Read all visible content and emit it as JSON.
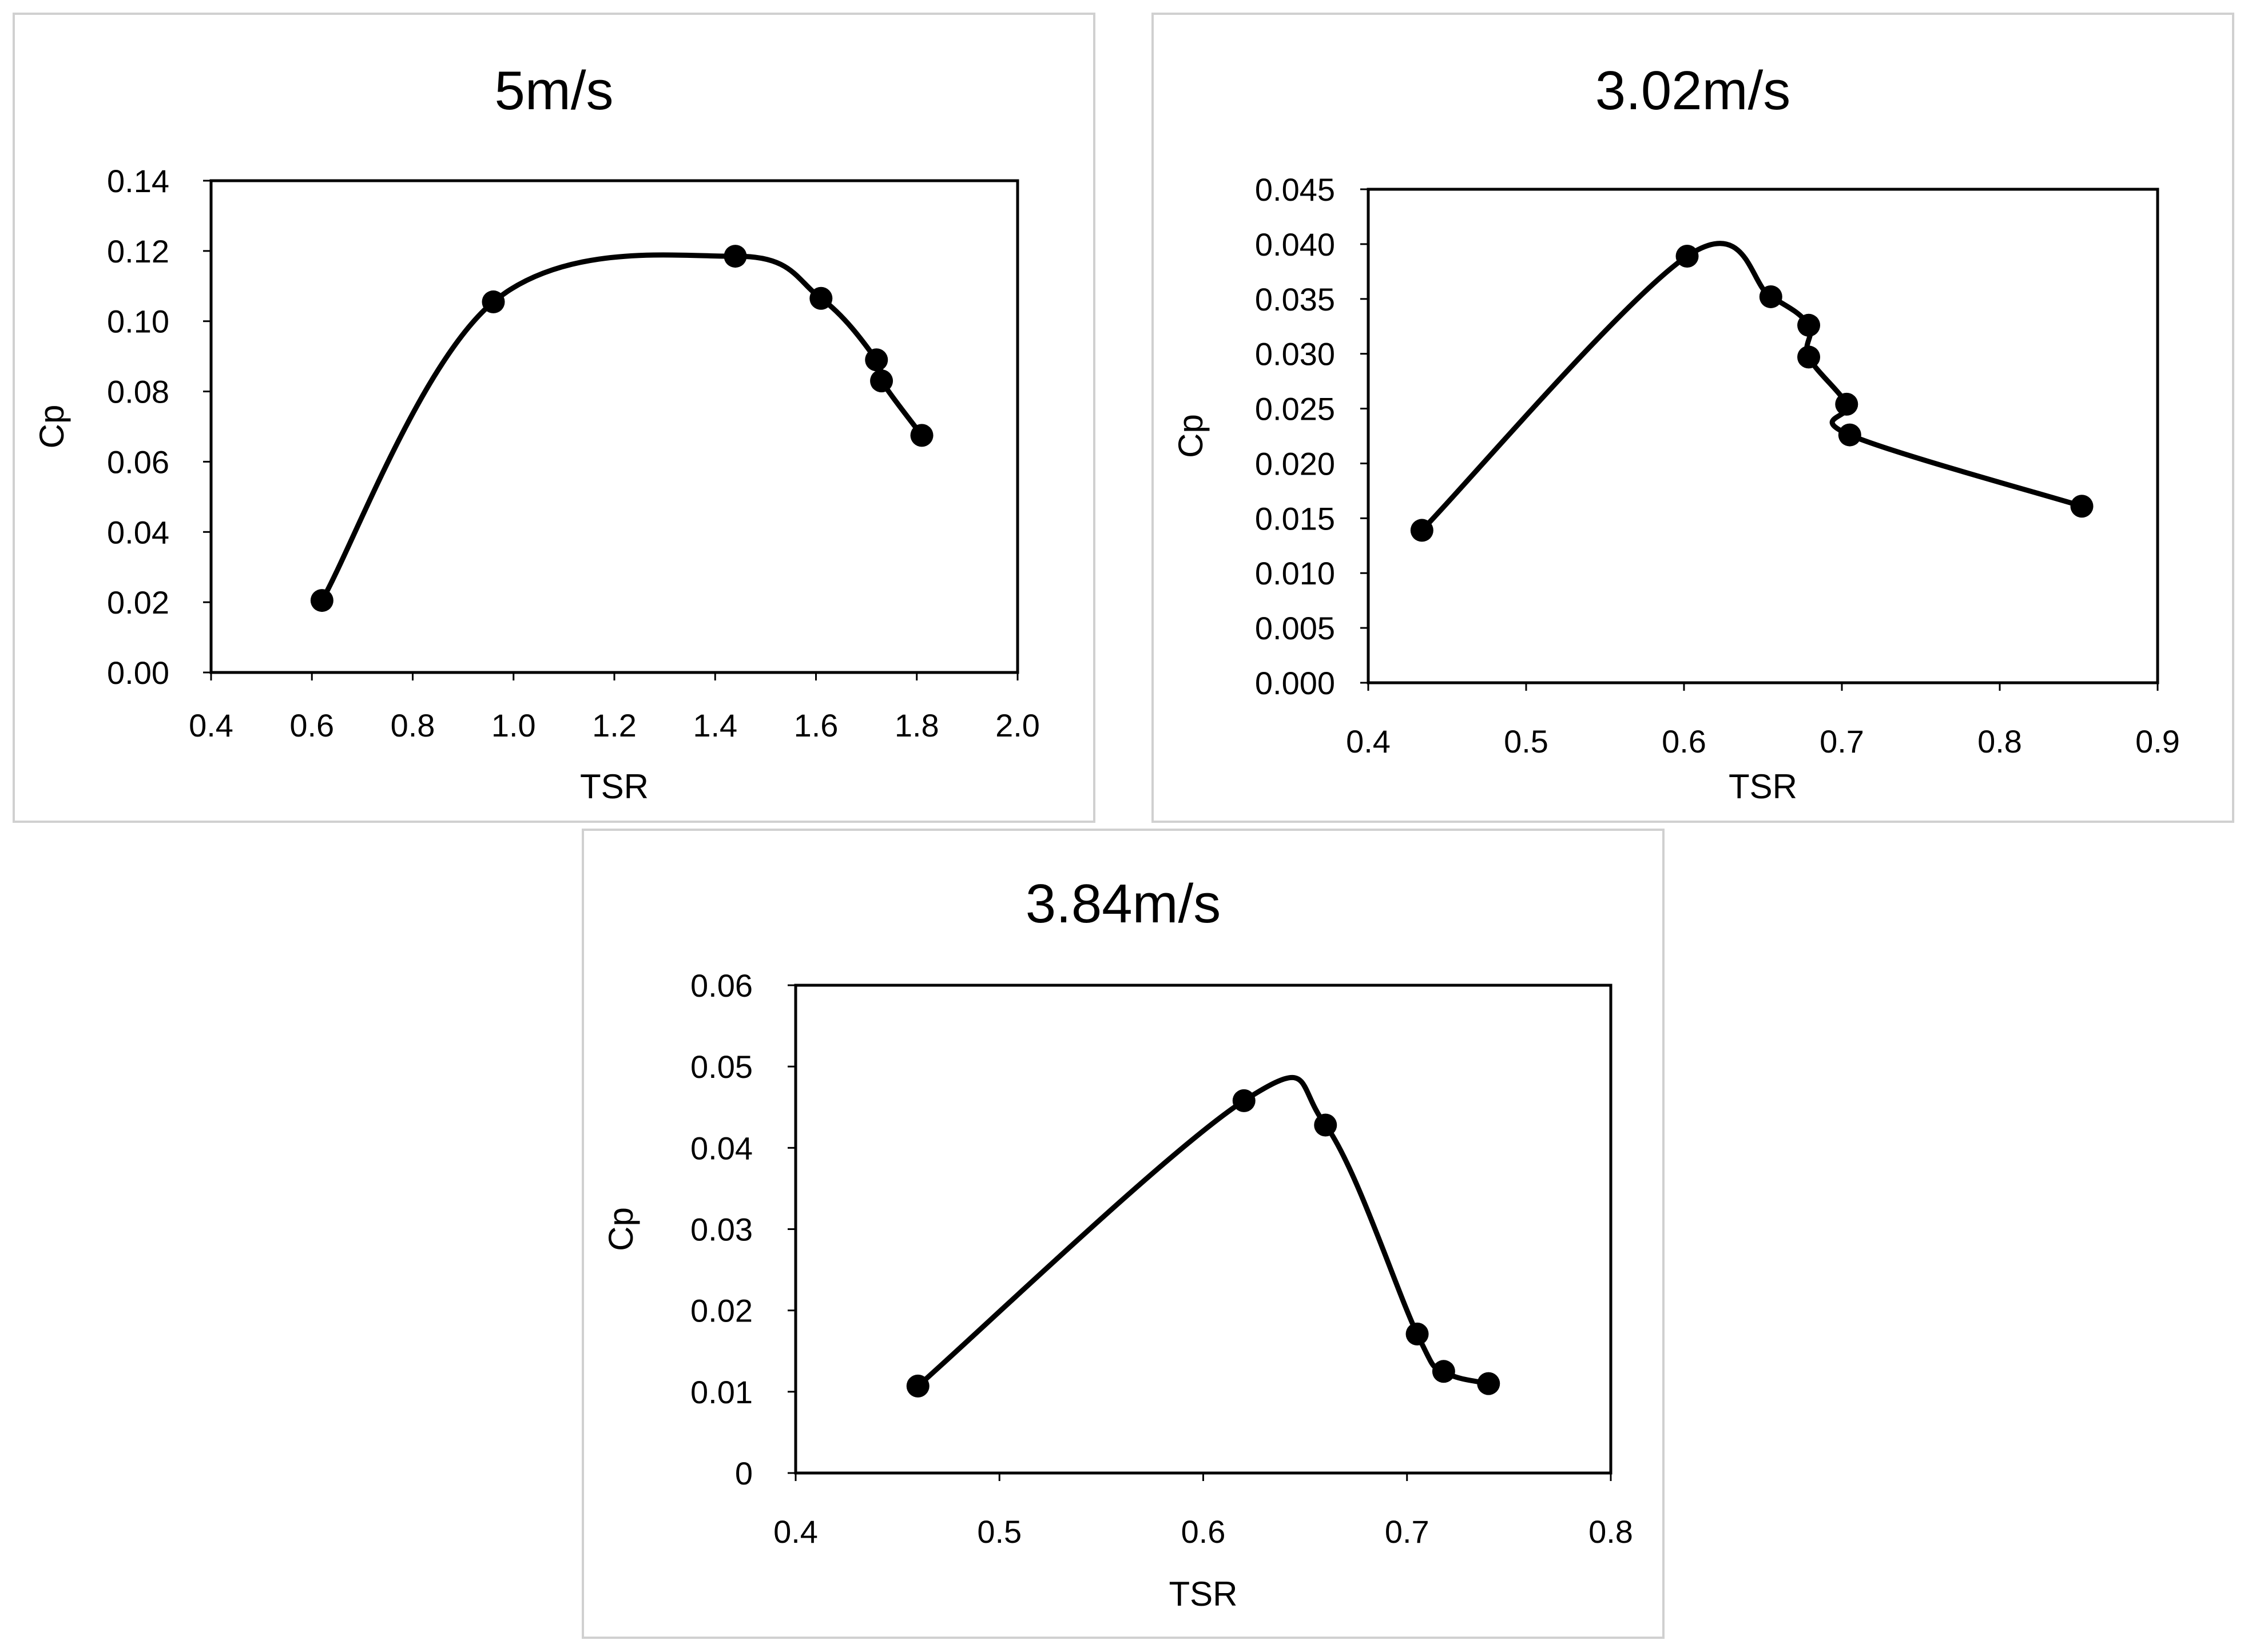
{
  "colors": {
    "line": "#000000",
    "background": "#ffffff",
    "panel_border": "#d0d0d0"
  },
  "chart_data": [
    {
      "type": "line",
      "title": "5m/s",
      "xlabel": "TSR",
      "ylabel": "Cp",
      "xlim": [
        0.4,
        2.0
      ],
      "ylim": [
        0.0,
        0.14
      ],
      "xticks": [
        0.4,
        0.6,
        0.8,
        1.0,
        1.2,
        1.4,
        1.6,
        1.8,
        2.0
      ],
      "yticks": [
        0.0,
        0.02,
        0.04,
        0.06,
        0.08,
        0.1,
        0.12,
        0.14
      ],
      "xtick_labels": [
        "0.4",
        "0.6",
        "0.8",
        "1.0",
        "1.2",
        "1.4",
        "1.6",
        "1.8",
        "2.0"
      ],
      "ytick_labels": [
        "0.00",
        "0.02",
        "0.04",
        "0.06",
        "0.08",
        "0.10",
        "0.12",
        "0.14"
      ],
      "grid": false,
      "series": [
        {
          "name": "Cp",
          "smooth": true,
          "markers": true,
          "x": [
            0.62,
            0.96,
            1.44,
            1.61,
            1.72,
            1.73,
            1.81
          ],
          "y": [
            0.0205,
            0.1055,
            0.1185,
            0.1065,
            0.089,
            0.083,
            0.0675
          ]
        }
      ]
    },
    {
      "type": "line",
      "title": "3.02m/s",
      "xlabel": "TSR",
      "ylabel": "Cp",
      "xlim": [
        0.4,
        0.9
      ],
      "ylim": [
        0.0,
        0.045
      ],
      "xticks": [
        0.4,
        0.5,
        0.6,
        0.7,
        0.8,
        0.9
      ],
      "yticks": [
        0.0,
        0.005,
        0.01,
        0.015,
        0.02,
        0.025,
        0.03,
        0.035,
        0.04,
        0.045
      ],
      "xtick_labels": [
        "0.4",
        "0.5",
        "0.6",
        "0.7",
        "0.8",
        "0.9"
      ],
      "ytick_labels": [
        "0.000",
        "0.005",
        "0.010",
        "0.015",
        "0.020",
        "0.025",
        "0.030",
        "0.035",
        "0.040",
        "0.045"
      ],
      "grid": false,
      "series": [
        {
          "name": "Cp",
          "smooth": true,
          "markers": true,
          "x": [
            0.434,
            0.602,
            0.655,
            0.679,
            0.679,
            0.703,
            0.705,
            0.852
          ],
          "y": [
            0.0139,
            0.0389,
            0.0352,
            0.0326,
            0.0297,
            0.0254,
            0.0226,
            0.0161
          ]
        }
      ]
    },
    {
      "type": "line",
      "title": "3.84m/s",
      "xlabel": "TSR",
      "ylabel": "Cp",
      "xlim": [
        0.4,
        0.8
      ],
      "ylim": [
        0,
        0.06
      ],
      "xticks": [
        0.4,
        0.5,
        0.6,
        0.7,
        0.8
      ],
      "yticks": [
        0,
        0.01,
        0.02,
        0.03,
        0.04,
        0.05,
        0.06
      ],
      "xtick_labels": [
        "0.4",
        "0.5",
        "0.6",
        "0.7",
        "0.8"
      ],
      "ytick_labels": [
        "0",
        "0.01",
        "0.02",
        "0.03",
        "0.04",
        "0.05",
        "0.06"
      ],
      "grid": false,
      "series": [
        {
          "name": "Cp",
          "smooth": true,
          "markers": true,
          "x": [
            0.46,
            0.62,
            0.66,
            0.705,
            0.718,
            0.74
          ],
          "y": [
            0.0107,
            0.0458,
            0.0428,
            0.0171,
            0.0125,
            0.011
          ]
        }
      ]
    }
  ]
}
